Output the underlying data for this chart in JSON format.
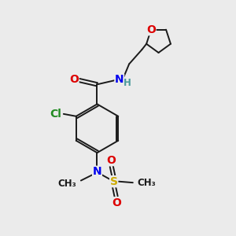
{
  "bg_color": "#ebebeb",
  "bond_color": "#1a1a1a",
  "atom_colors": {
    "O": "#dd0000",
    "N": "#0000ee",
    "Cl": "#228B22",
    "S": "#ccaa00",
    "C": "#1a1a1a",
    "H": "#4a9a9a"
  },
  "font_size_atom": 10,
  "font_size_small": 8.5,
  "lw": 1.4
}
